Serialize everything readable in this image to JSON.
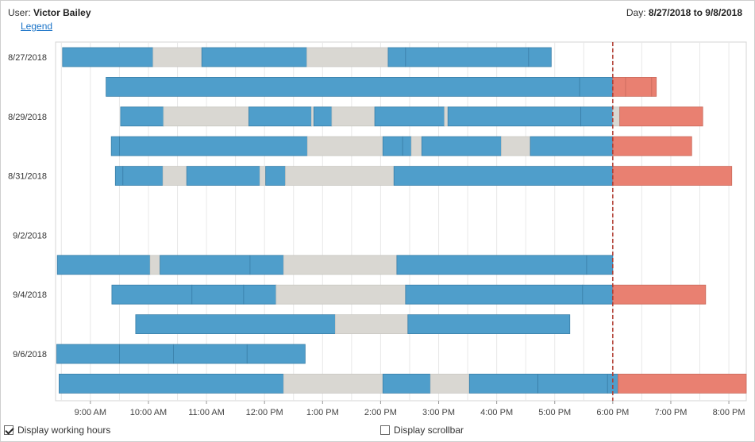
{
  "header": {
    "user_label": "User:",
    "user_name": "Victor Bailey",
    "day_label": "Day:",
    "day_range": "8/27/2018 to 9/8/2018",
    "legend_link": "Legend"
  },
  "footer": {
    "working_hours_label": "Display working hours",
    "working_hours_checked": true,
    "scrollbar_label": "Display scrollbar",
    "scrollbar_checked": false
  },
  "colors": {
    "work": "#4f9ecb",
    "idle": "#d9d7d2",
    "overtime": "#e98071",
    "now_line": "#b03a2e",
    "grid": "#e8e8e8"
  },
  "chart_data": {
    "type": "gantt",
    "x_axis": {
      "min_hour": 8.4,
      "max_hour": 20.3,
      "ticks": [
        {
          "hour": 9,
          "label": "9:00 AM"
        },
        {
          "hour": 10,
          "label": "10:00 AM"
        },
        {
          "hour": 11,
          "label": "11:00 AM"
        },
        {
          "hour": 12,
          "label": "12:00 PM"
        },
        {
          "hour": 13,
          "label": "1:00 PM"
        },
        {
          "hour": 14,
          "label": "2:00 PM"
        },
        {
          "hour": 15,
          "label": "3:00 PM"
        },
        {
          "hour": 16,
          "label": "4:00 PM"
        },
        {
          "hour": 17,
          "label": "5:00 PM"
        },
        {
          "hour": 18,
          "label": "6:00 PM"
        },
        {
          "hour": 19,
          "label": "7:00 PM"
        },
        {
          "hour": 20,
          "label": "8:00 PM"
        }
      ]
    },
    "now_marker_hour": 18.0,
    "rows": [
      {
        "label": "8/27/2018",
        "segments": [
          {
            "s": 8.52,
            "e": 10.08,
            "k": "work"
          },
          {
            "s": 10.08,
            "e": 10.92,
            "k": "idle"
          },
          {
            "s": 10.92,
            "e": 12.73,
            "k": "work"
          },
          {
            "s": 12.73,
            "e": 14.13,
            "k": "idle"
          },
          {
            "s": 14.13,
            "e": 14.43,
            "k": "work"
          },
          {
            "s": 14.43,
            "e": 16.55,
            "k": "work"
          },
          {
            "s": 16.55,
            "e": 16.94,
            "k": "work"
          }
        ]
      },
      {
        "label": "",
        "segments": [
          {
            "s": 9.27,
            "e": 17.43,
            "k": "work"
          },
          {
            "s": 17.43,
            "e": 18.0,
            "k": "work"
          },
          {
            "s": 18.0,
            "e": 18.22,
            "k": "overtime"
          },
          {
            "s": 18.22,
            "e": 18.67,
            "k": "overtime"
          },
          {
            "s": 18.67,
            "e": 18.75,
            "k": "overtime"
          }
        ]
      },
      {
        "label": "8/29/2018",
        "segments": [
          {
            "s": 9.52,
            "e": 10.26,
            "k": "work"
          },
          {
            "s": 10.26,
            "e": 11.73,
            "k": "idle"
          },
          {
            "s": 11.73,
            "e": 12.81,
            "k": "work"
          },
          {
            "s": 12.81,
            "e": 12.85,
            "k": "idle"
          },
          {
            "s": 12.85,
            "e": 13.16,
            "k": "work"
          },
          {
            "s": 13.16,
            "e": 13.9,
            "k": "idle"
          },
          {
            "s": 13.9,
            "e": 15.1,
            "k": "work"
          },
          {
            "s": 15.1,
            "e": 15.16,
            "k": "idle"
          },
          {
            "s": 15.16,
            "e": 17.45,
            "k": "work"
          },
          {
            "s": 17.45,
            "e": 18.0,
            "k": "work"
          },
          {
            "s": 18.0,
            "e": 18.12,
            "k": "idle"
          },
          {
            "s": 18.12,
            "e": 19.55,
            "k": "overtime"
          }
        ]
      },
      {
        "label": "",
        "segments": [
          {
            "s": 9.36,
            "e": 9.5,
            "k": "work"
          },
          {
            "s": 9.5,
            "e": 12.74,
            "k": "work"
          },
          {
            "s": 12.74,
            "e": 14.04,
            "k": "idle"
          },
          {
            "s": 14.04,
            "e": 14.38,
            "k": "work"
          },
          {
            "s": 14.38,
            "e": 14.53,
            "k": "work"
          },
          {
            "s": 14.53,
            "e": 14.71,
            "k": "idle"
          },
          {
            "s": 14.71,
            "e": 16.08,
            "k": "work"
          },
          {
            "s": 16.08,
            "e": 16.58,
            "k": "idle"
          },
          {
            "s": 16.58,
            "e": 18.0,
            "k": "work"
          },
          {
            "s": 18.0,
            "e": 19.36,
            "k": "overtime"
          }
        ]
      },
      {
        "label": "8/31/2018",
        "segments": [
          {
            "s": 9.43,
            "e": 9.56,
            "k": "work"
          },
          {
            "s": 9.56,
            "e": 10.25,
            "k": "work"
          },
          {
            "s": 10.25,
            "e": 10.66,
            "k": "idle"
          },
          {
            "s": 10.66,
            "e": 11.92,
            "k": "work"
          },
          {
            "s": 11.92,
            "e": 12.02,
            "k": "idle"
          },
          {
            "s": 12.02,
            "e": 12.36,
            "k": "work"
          },
          {
            "s": 12.36,
            "e": 14.23,
            "k": "idle"
          },
          {
            "s": 14.23,
            "e": 18.0,
            "k": "work"
          },
          {
            "s": 18.0,
            "e": 20.05,
            "k": "overtime"
          }
        ]
      },
      {
        "label": "",
        "segments": []
      },
      {
        "label": "9/2/2018",
        "segments": []
      },
      {
        "label": "",
        "segments": [
          {
            "s": 8.43,
            "e": 10.03,
            "k": "work"
          },
          {
            "s": 10.03,
            "e": 10.2,
            "k": "idle"
          },
          {
            "s": 10.2,
            "e": 11.75,
            "k": "work"
          },
          {
            "s": 11.75,
            "e": 12.33,
            "k": "work"
          },
          {
            "s": 12.33,
            "e": 14.28,
            "k": "idle"
          },
          {
            "s": 14.28,
            "e": 17.55,
            "k": "work"
          },
          {
            "s": 17.55,
            "e": 18.0,
            "k": "work"
          }
        ]
      },
      {
        "label": "9/4/2018",
        "segments": [
          {
            "s": 9.37,
            "e": 10.75,
            "k": "work"
          },
          {
            "s": 10.75,
            "e": 11.64,
            "k": "work"
          },
          {
            "s": 11.64,
            "e": 12.2,
            "k": "work"
          },
          {
            "s": 12.2,
            "e": 14.43,
            "k": "idle"
          },
          {
            "s": 14.43,
            "e": 17.48,
            "k": "work"
          },
          {
            "s": 17.48,
            "e": 18.0,
            "k": "work"
          },
          {
            "s": 18.0,
            "e": 19.6,
            "k": "overtime"
          }
        ]
      },
      {
        "label": "",
        "segments": [
          {
            "s": 9.78,
            "e": 13.22,
            "k": "work"
          },
          {
            "s": 13.22,
            "e": 14.47,
            "k": "idle"
          },
          {
            "s": 14.47,
            "e": 17.26,
            "k": "work"
          }
        ]
      },
      {
        "label": "9/6/2018",
        "segments": [
          {
            "s": 8.42,
            "e": 9.5,
            "k": "work"
          },
          {
            "s": 9.5,
            "e": 10.43,
            "k": "work"
          },
          {
            "s": 10.43,
            "e": 11.7,
            "k": "work"
          },
          {
            "s": 11.7,
            "e": 12.7,
            "k": "work"
          }
        ]
      },
      {
        "label": "",
        "segments": [
          {
            "s": 8.46,
            "e": 12.33,
            "k": "work"
          },
          {
            "s": 12.33,
            "e": 14.04,
            "k": "idle"
          },
          {
            "s": 14.04,
            "e": 14.86,
            "k": "work"
          },
          {
            "s": 14.86,
            "e": 15.53,
            "k": "idle"
          },
          {
            "s": 15.53,
            "e": 16.71,
            "k": "work"
          },
          {
            "s": 16.71,
            "e": 17.91,
            "k": "work"
          },
          {
            "s": 17.91,
            "e": 18.09,
            "k": "work"
          },
          {
            "s": 18.09,
            "e": 20.3,
            "k": "overtime"
          }
        ]
      }
    ]
  }
}
